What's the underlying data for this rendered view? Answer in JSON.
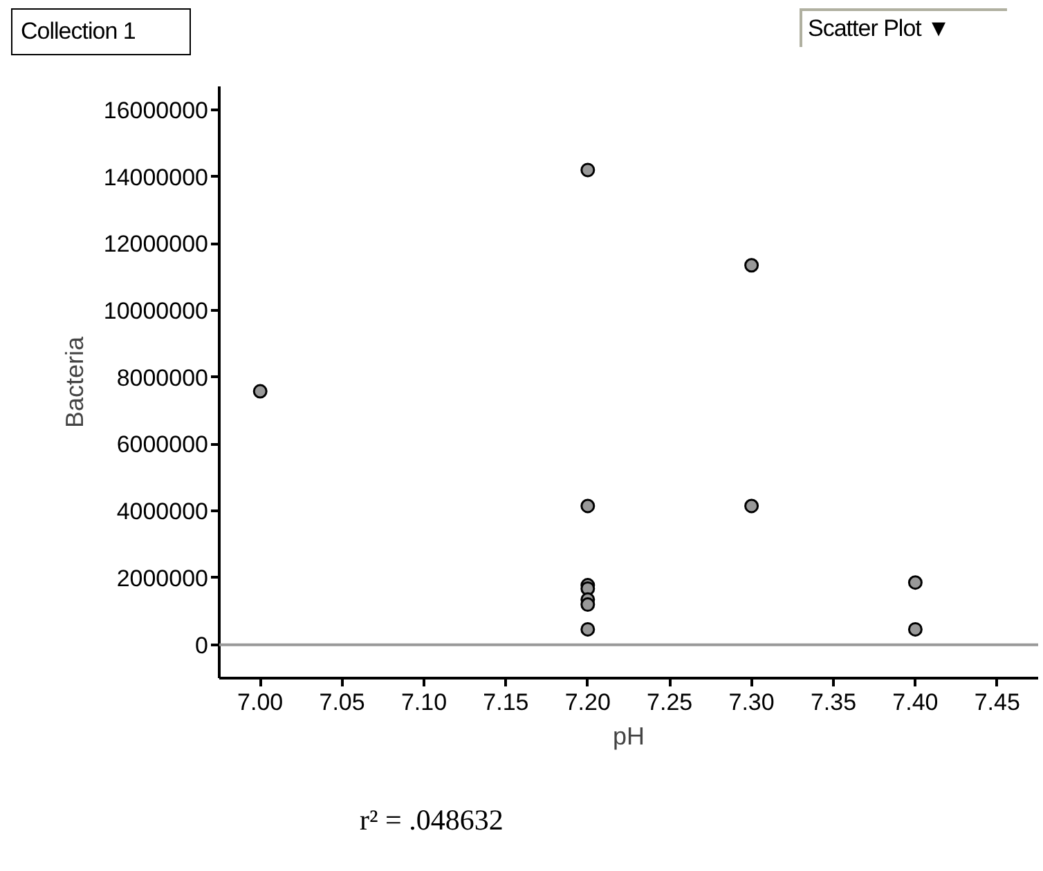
{
  "chart_data": {
    "type": "scatter",
    "title": "Collection 1",
    "xlabel": "pH",
    "ylabel": "Bacteria",
    "annotations": [
      "Scatter Plot ▼",
      "r² = .048632"
    ],
    "x": [
      7.0,
      7.2,
      7.3,
      7.2,
      7.3,
      7.2,
      7.2,
      7.2,
      7.2,
      7.2,
      7.4,
      7.4
    ],
    "series": [
      {
        "color": "#999999",
        "values": [
          7580000,
          14200000,
          11350000,
          4150000,
          4150000,
          1780000,
          1680000,
          1350000,
          1200000,
          460000,
          1860000,
          460000
        ]
      }
    ],
    "marker": "circle",
    "grid": false,
    "xlim": [
      6.975,
      7.475
    ],
    "xticks": [
      {
        "value": 7.0,
        "label": "7.00"
      },
      {
        "value": 7.05,
        "label": "7.05"
      },
      {
        "value": 7.1,
        "label": "7.10"
      },
      {
        "value": 7.15,
        "label": "7.15"
      },
      {
        "value": 7.2,
        "label": "7.20"
      },
      {
        "value": 7.25,
        "label": "7.25"
      },
      {
        "value": 7.3,
        "label": "7.30"
      },
      {
        "value": 7.35,
        "label": "7.35"
      },
      {
        "value": 7.4,
        "label": "7.40"
      },
      {
        "value": 7.45,
        "label": "7.45"
      }
    ],
    "ylim": [
      -1000000,
      16700000
    ],
    "yticks": [
      0,
      2000000,
      4000000,
      6000000,
      8000000,
      10000000,
      12000000,
      14000000,
      16000000
    ],
    "ref_lines": [
      {
        "axis": "y",
        "value": 0,
        "color": "#999999"
      }
    ]
  }
}
